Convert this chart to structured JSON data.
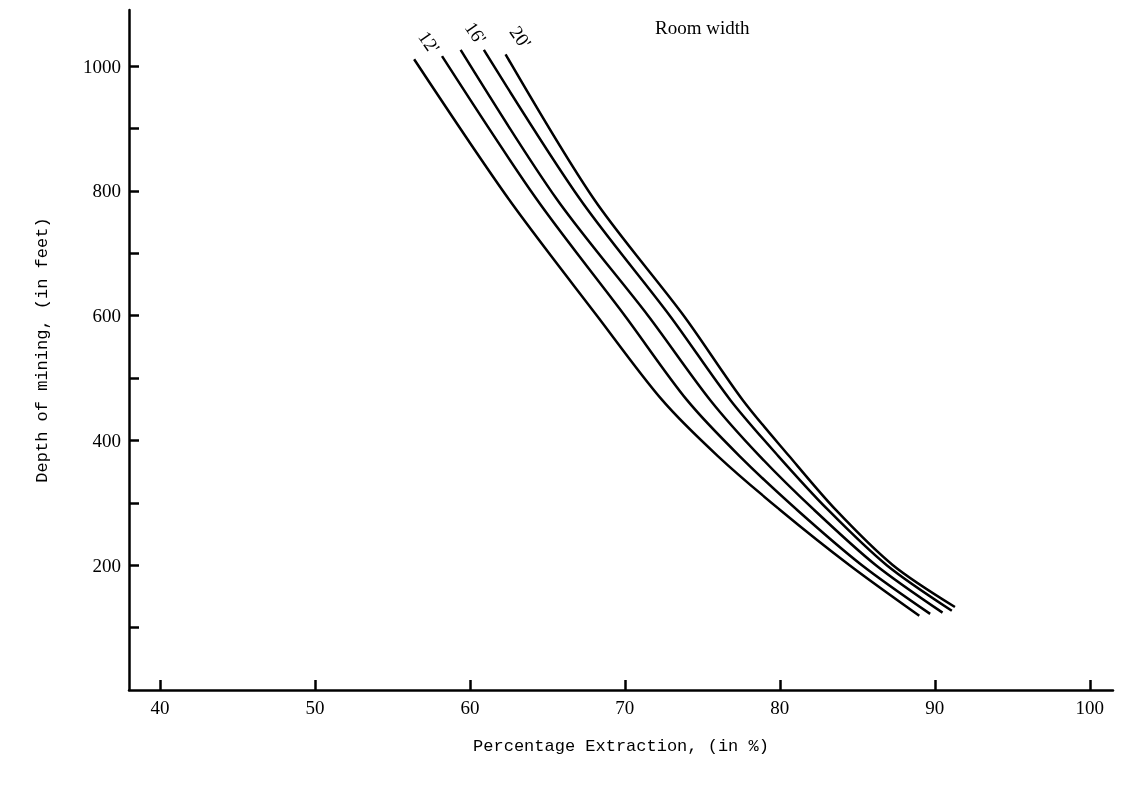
{
  "chart_data": {
    "type": "line",
    "xlabel": "Percentage Extraction, (in %)",
    "ylabel": "Depth of mining, (in feet)",
    "annotations": [
      "Room width"
    ],
    "xlim": [
      38,
      101.5
    ],
    "xticks": [
      40,
      50,
      60,
      70,
      80,
      90,
      100
    ],
    "ylim": [
      0,
      1090
    ],
    "yticks": [
      {
        "value": 100,
        "label": null
      },
      200,
      {
        "value": 300,
        "label": null
      },
      400,
      {
        "value": 500,
        "label": null
      },
      600,
      {
        "value": 700,
        "label": null
      },
      800,
      {
        "value": 900,
        "label": null
      },
      1000
    ],
    "grid": false,
    "legend": false,
    "line_style": "solid",
    "series": [
      {
        "name": "12'",
        "color": "#000000",
        "x": [
          56.4,
          62.5,
          68.2,
          72.4,
          76.0,
          80.0,
          84.5,
          89.0
        ],
        "values": [
          1011,
          787,
          600,
          465,
          375,
          289,
          200,
          119
        ]
      },
      {
        "color": "#000000",
        "x": [
          58.2,
          64.3,
          70.0,
          74.0,
          77.4,
          81.1,
          85.3,
          89.7
        ],
        "values": [
          1016,
          787,
          600,
          465,
          375,
          289,
          200,
          122
        ]
      },
      {
        "name": "16'",
        "color": "#000000",
        "x": [
          59.4,
          65.6,
          71.5,
          75.5,
          78.7,
          82.2,
          86.2,
          90.5
        ],
        "values": [
          1026,
          787,
          600,
          465,
          375,
          289,
          200,
          124
        ]
      },
      {
        "color": "#000000",
        "x": [
          60.9,
          67.1,
          72.9,
          76.8,
          79.9,
          83.1,
          86.9,
          91.1
        ],
        "values": [
          1026,
          787,
          600,
          465,
          375,
          289,
          200,
          127
        ]
      },
      {
        "name": "20'",
        "color": "#000000",
        "x": [
          62.3,
          68.0,
          73.8,
          77.6,
          80.6,
          83.6,
          87.3,
          91.3
        ],
        "values": [
          1019,
          787,
          600,
          465,
          375,
          289,
          200,
          133
        ]
      }
    ]
  }
}
